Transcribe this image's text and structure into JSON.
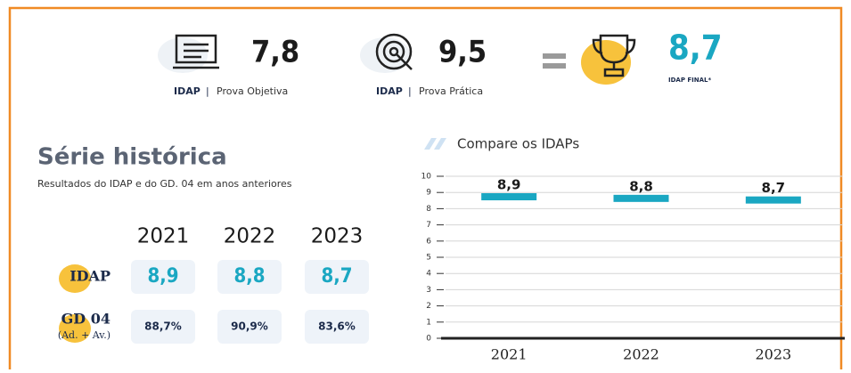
{
  "summary": {
    "objetiva": {
      "value": "7,8",
      "label_a": "IDAP",
      "label_b": "Prova Objetiva"
    },
    "pratica": {
      "value": "9,5",
      "label_a": "IDAP",
      "label_b": "Prova Prática"
    },
    "final": {
      "value": "8,7",
      "label": "IDAP FINAL*"
    }
  },
  "historico": {
    "title": "Série histórica",
    "subtitle": "Resultados do IDAP e do GD. 04 em anos anteriores",
    "years": [
      "2021",
      "2022",
      "2023"
    ],
    "rows": [
      {
        "label": "IDAP",
        "values": [
          "8,9",
          "8,8",
          "8,7"
        ]
      },
      {
        "label": "GD 04",
        "sublabel": "(Ad. + Av.)",
        "values": [
          "88,7%",
          "90,9%",
          "83,6%"
        ]
      }
    ]
  },
  "chart_data": {
    "type": "bar",
    "title": "Compare os IDAPs",
    "categories": [
      "2021",
      "2022",
      "2023"
    ],
    "values": [
      8.9,
      8.8,
      8.7
    ],
    "value_labels": [
      "8,9",
      "8,8",
      "8,7"
    ],
    "color": "#1aa7c2",
    "ylim": [
      0,
      10
    ],
    "yticks": [
      0,
      1,
      2,
      3,
      4,
      5,
      6,
      7,
      8,
      9,
      10
    ],
    "grid": true
  }
}
